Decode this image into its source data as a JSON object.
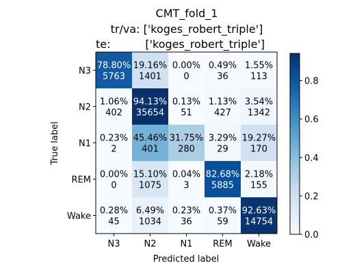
{
  "chart_data": {
    "type": "heatmap",
    "title_lines": [
      "CMT_fold_1",
      "tr/va: ['koges_robert_triple']",
      "te:          ['koges_robert_triple']"
    ],
    "xlabel": "Predicted label",
    "ylabel": "True label",
    "x_categories": [
      "N3",
      "N2",
      "N1",
      "REM",
      "Wake"
    ],
    "y_categories": [
      "N3",
      "N2",
      "N1",
      "REM",
      "Wake"
    ],
    "percent_labels": [
      [
        "78.80%",
        "19.16%",
        "0.00%",
        "0.49%",
        "1.55%"
      ],
      [
        "1.06%",
        "94.13%",
        "0.13%",
        "1.13%",
        "3.54%"
      ],
      [
        "0.23%",
        "45.46%",
        "31.75%",
        "3.29%",
        "19.27%"
      ],
      [
        "0.00%",
        "15.10%",
        "0.04%",
        "82.68%",
        "2.18%"
      ],
      [
        "0.28%",
        "6.49%",
        "0.23%",
        "0.37%",
        "92.63%"
      ]
    ],
    "counts": [
      [
        5763,
        1401,
        0,
        36,
        113
      ],
      [
        402,
        35654,
        51,
        427,
        1342
      ],
      [
        2,
        401,
        280,
        29,
        170
      ],
      [
        0,
        1075,
        3,
        5885,
        155
      ],
      [
        45,
        1034,
        36,
        59,
        14754
      ]
    ],
    "colormap": "Blues",
    "colorbar": {
      "min": 0.0,
      "max": 0.9413,
      "ticks": [
        "0.0",
        "0.2",
        "0.4",
        "0.6",
        "0.8"
      ],
      "tick_values": [
        0.0,
        0.2,
        0.4,
        0.6,
        0.8
      ]
    }
  }
}
